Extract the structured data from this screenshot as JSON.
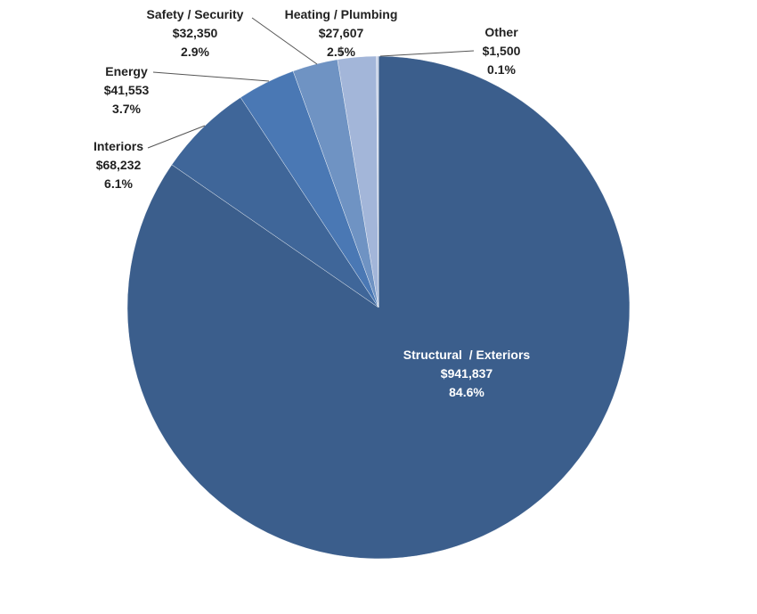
{
  "chart_data": {
    "type": "pie",
    "title": "",
    "start_angle_deg": 0,
    "direction": "clockwise",
    "slices": [
      {
        "name": "Structural  / Exteriors",
        "value": 941837,
        "value_label": "$941,837",
        "percent_label": "84.6%",
        "color": "#3B5E8C"
      },
      {
        "name": "Interiors",
        "value": 68232,
        "value_label": "$68,232",
        "percent_label": "6.1%",
        "color": "#3F6699"
      },
      {
        "name": "Energy",
        "value": 41553,
        "value_label": "$41,553",
        "percent_label": "3.7%",
        "color": "#4A78B4"
      },
      {
        "name": "Safety / Security",
        "value": 32350,
        "value_label": "$32,350",
        "percent_label": "2.9%",
        "color": "#6F93C3"
      },
      {
        "name": "Heating / Plumbing",
        "value": 27607,
        "value_label": "$27,607",
        "percent_label": "2.5%",
        "color": "#A3B6D9"
      },
      {
        "name": "Other",
        "value": 1500,
        "value_label": "$1,500",
        "percent_label": "0.1%",
        "color": "#C9D3E8"
      }
    ]
  }
}
